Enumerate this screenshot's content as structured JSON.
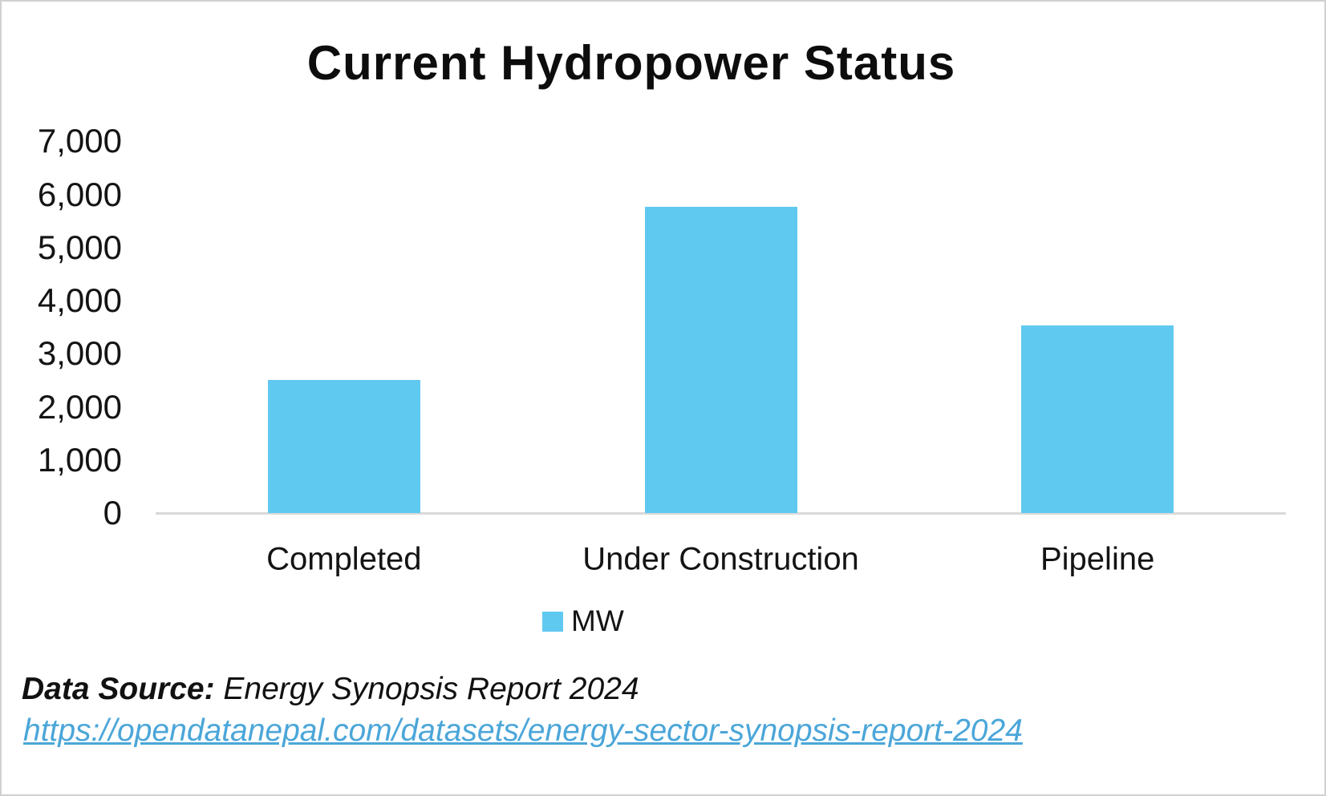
{
  "title": "Current Hydropower Status",
  "chart_data": {
    "type": "bar",
    "title": "Current Hydropower Status",
    "categories": [
      "Completed",
      "Under Construction",
      "Pipeline"
    ],
    "series": [
      {
        "name": "MW",
        "values": [
          2500,
          5770,
          3530
        ]
      }
    ],
    "xlabel": "",
    "ylabel": "",
    "ylim": [
      0,
      7000
    ],
    "yticks": [
      0,
      1000,
      2000,
      3000,
      4000,
      5000,
      6000,
      7000
    ],
    "ytick_labels": [
      "0",
      "1,000",
      "2,000",
      "3,000",
      "4,000",
      "5,000",
      "6,000",
      "7,000"
    ],
    "grid": false,
    "legend_position": "bottom",
    "bar_color": "#60C9F0"
  },
  "legend": {
    "label": "MW",
    "swatch_color": "#60C9F0"
  },
  "footer": {
    "source_label": "Data Source:",
    "source_text": " Energy Synopsis Report 2024",
    "link_text": "https://opendatanepal.com/datasets/energy-sector-synopsis-report-2024"
  },
  "colors": {
    "bar": "#60C9F0",
    "link": "#4BA6D9",
    "axis_line": "#d9d9d9",
    "text": "#141414"
  }
}
